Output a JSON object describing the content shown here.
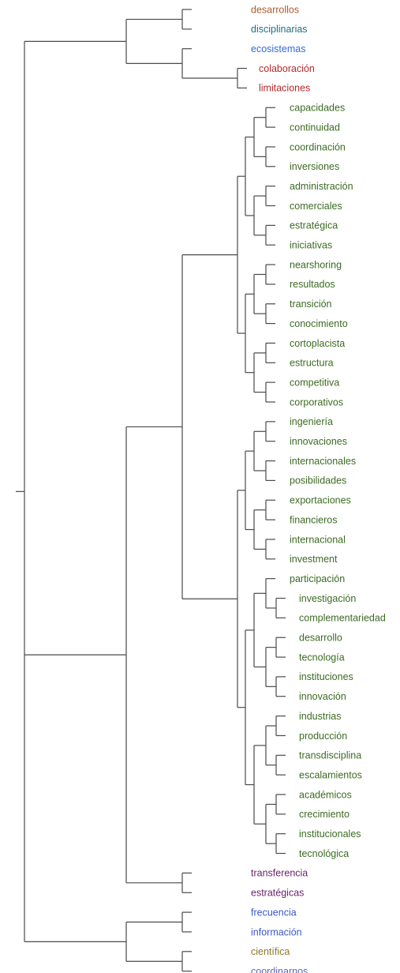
{
  "colors": {
    "brown": "#b05a2a",
    "teal": "#1f6f80",
    "blue": "#2f6cd6",
    "red": "#b22a2a",
    "green": "#3b6b22",
    "purple": "#6b1f6b",
    "bluepurple": "#3a57c8",
    "olive": "#8a7a2a",
    "lavender": "#5a6ab5",
    "branch": "#4a4a4a"
  },
  "tree": {
    "c": [
      {
        "c": [
          {
            "c": [
              {
                "l": "desarrollos",
                "k": "brown"
              },
              {
                "l": "disciplinarias",
                "k": "teal"
              }
            ]
          },
          {
            "c": [
              {
                "l": "ecosistemas",
                "k": "blue"
              },
              {
                "c": [
                  {
                    "l": "colaboración",
                    "k": "red"
                  },
                  {
                    "l": "limitaciones",
                    "k": "red"
                  }
                ]
              }
            ]
          }
        ]
      },
      {
        "c": [
          {
            "c": [
              {
                "c": [
                  {
                    "c": [
                      {
                        "c": [
                          {
                            "c": [
                              {
                                "l": "capacidades",
                                "k": "green"
                              },
                              {
                                "l": "continuidad",
                                "k": "green"
                              }
                            ]
                          },
                          {
                            "c": [
                              {
                                "l": "coordinación",
                                "k": "green"
                              },
                              {
                                "l": "inversiones",
                                "k": "green"
                              }
                            ]
                          }
                        ]
                      },
                      {
                        "c": [
                          {
                            "c": [
                              {
                                "l": "administración",
                                "k": "green"
                              },
                              {
                                "l": "comerciales",
                                "k": "green"
                              }
                            ]
                          },
                          {
                            "c": [
                              {
                                "l": "estratégica",
                                "k": "green"
                              },
                              {
                                "l": "iniciativas",
                                "k": "green"
                              }
                            ]
                          }
                        ]
                      }
                    ]
                  },
                  {
                    "c": [
                      {
                        "c": [
                          {
                            "c": [
                              {
                                "l": "nearshoring",
                                "k": "green"
                              },
                              {
                                "l": "resultados",
                                "k": "green"
                              }
                            ]
                          },
                          {
                            "c": [
                              {
                                "l": "transición",
                                "k": "green"
                              },
                              {
                                "l": "conocimiento",
                                "k": "green"
                              }
                            ]
                          }
                        ]
                      },
                      {
                        "c": [
                          {
                            "c": [
                              {
                                "l": "cortoplacista",
                                "k": "green"
                              },
                              {
                                "l": "estructura",
                                "k": "green"
                              }
                            ]
                          },
                          {
                            "c": [
                              {
                                "l": "competitiva",
                                "k": "green"
                              },
                              {
                                "l": "corporativos",
                                "k": "green"
                              }
                            ]
                          }
                        ]
                      }
                    ]
                  }
                ]
              },
              {
                "c": [
                  {
                    "c": [
                      {
                        "c": [
                          {
                            "c": [
                              {
                                "l": "ingeniería",
                                "k": "green"
                              },
                              {
                                "l": "innovaciones",
                                "k": "green"
                              }
                            ]
                          },
                          {
                            "c": [
                              {
                                "l": "internacionales",
                                "k": "green"
                              },
                              {
                                "l": "posibilidades",
                                "k": "green"
                              }
                            ]
                          }
                        ]
                      },
                      {
                        "c": [
                          {
                            "c": [
                              {
                                "l": "exportaciones",
                                "k": "green"
                              },
                              {
                                "l": "financieros",
                                "k": "green"
                              }
                            ]
                          },
                          {
                            "c": [
                              {
                                "l": "internacional",
                                "k": "green"
                              },
                              {
                                "l": "investment",
                                "k": "green"
                              }
                            ]
                          }
                        ]
                      }
                    ]
                  },
                  {
                    "c": [
                      {
                        "c": [
                          {
                            "c": [
                              {
                                "l": "participación",
                                "k": "green"
                              },
                              {
                                "c": [
                                  {
                                    "l": "investigación",
                                    "k": "green"
                                  },
                                  {
                                    "l": "complementariedad",
                                    "k": "green"
                                  }
                                ]
                              }
                            ]
                          },
                          {
                            "c": [
                              {
                                "c": [
                                  {
                                    "l": "desarrollo",
                                    "k": "green"
                                  },
                                  {
                                    "l": "tecnología",
                                    "k": "green"
                                  }
                                ]
                              },
                              {
                                "c": [
                                  {
                                    "l": "instituciones",
                                    "k": "green"
                                  },
                                  {
                                    "l": "innovación",
                                    "k": "green"
                                  }
                                ]
                              }
                            ]
                          }
                        ]
                      },
                      {
                        "c": [
                          {
                            "c": [
                              {
                                "c": [
                                  {
                                    "l": "industrias",
                                    "k": "green"
                                  },
                                  {
                                    "l": "producción",
                                    "k": "green"
                                  }
                                ]
                              },
                              {
                                "c": [
                                  {
                                    "l": "transdisciplina",
                                    "k": "green"
                                  },
                                  {
                                    "l": "escalamientos",
                                    "k": "green"
                                  }
                                ]
                              }
                            ]
                          },
                          {
                            "c": [
                              {
                                "c": [
                                  {
                                    "l": "académicos",
                                    "k": "green"
                                  },
                                  {
                                    "l": "crecimiento",
                                    "k": "green"
                                  }
                                ]
                              },
                              {
                                "c": [
                                  {
                                    "l": "institucionales",
                                    "k": "green"
                                  },
                                  {
                                    "l": "tecnológica",
                                    "k": "green"
                                  }
                                ]
                              }
                            ]
                          }
                        ]
                      }
                    ]
                  }
                ]
              }
            ]
          },
          {
            "c": [
              {
                "l": "transferencia",
                "k": "purple"
              },
              {
                "l": "estratégicas",
                "k": "purple"
              }
            ]
          }
        ]
      },
      {
        "c": [
          {
            "c": [
              {
                "l": "frecuencia",
                "k": "bluepurple"
              },
              {
                "l": "información",
                "k": "bluepurple"
              }
            ]
          },
          {
            "c": [
              {
                "l": "científica",
                "k": "olive"
              },
              {
                "l": "coordinarnos",
                "k": "lavender"
              }
            ]
          }
        ]
      }
    ]
  }
}
